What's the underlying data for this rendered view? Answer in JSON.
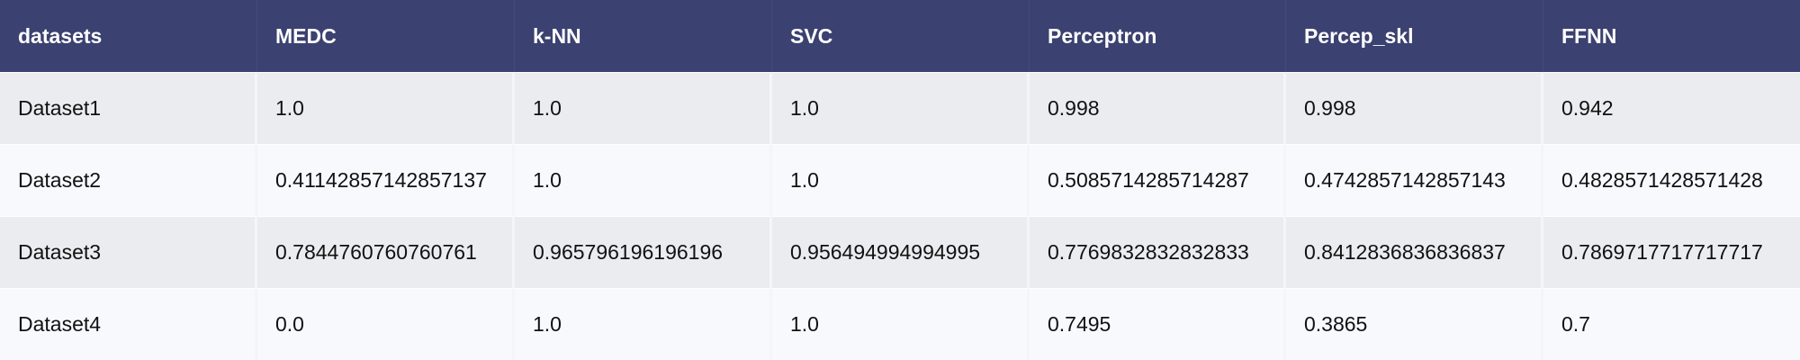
{
  "table": {
    "headers": [
      "datasets",
      "MEDC",
      "k-NN",
      "SVC",
      "Perceptron",
      "Percep_skl",
      "FFNN"
    ],
    "rows": [
      [
        "Dataset1",
        "1.0",
        "1.0",
        "1.0",
        "0.998",
        "0.998",
        "0.942"
      ],
      [
        "Dataset2",
        "0.41142857142857137",
        "1.0",
        "1.0",
        "0.5085714285714287",
        "0.4742857142857143",
        "0.4828571428571428"
      ],
      [
        "Dataset3",
        "0.7844760760760761",
        "0.965796196196196",
        "0.956494994994995",
        "0.7769832832832833",
        "0.8412836836836837",
        "0.7869717717717717"
      ],
      [
        "Dataset4",
        "0.0",
        "1.0",
        "1.0",
        "0.7495",
        "0.3865",
        "0.7"
      ]
    ]
  }
}
